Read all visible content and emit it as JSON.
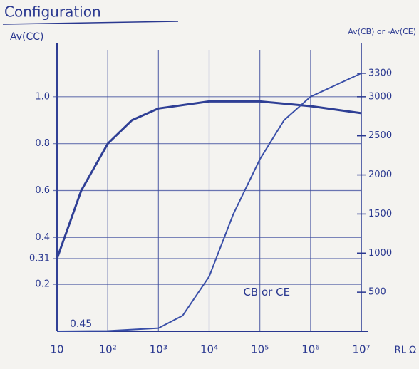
{
  "chart_data": {
    "type": "line",
    "title": "Configuration",
    "y_label": "Av(CC)",
    "y2_label": "Av(CB) or -Av(CE)",
    "x_label": "RL Ω",
    "log_x": true,
    "grid": true,
    "xlim": [
      10,
      10000000
    ],
    "xticks": [
      10,
      {
        "value": 100,
        "label": "10²"
      },
      {
        "value": 1000,
        "label": "10³"
      },
      {
        "value": 10000,
        "label": "10⁴"
      },
      {
        "value": 100000,
        "label": "10⁵"
      },
      {
        "value": 1000000,
        "label": "10⁶"
      },
      {
        "value": 10000000,
        "label": "10⁷"
      }
    ],
    "ylim": [
      0,
      1.2
    ],
    "yticks": [
      0.2,
      0.31,
      0.4,
      0.6,
      0.8,
      {
        "value": 1,
        "label": "1.0"
      }
    ],
    "y2lim": [
      0,
      3600
    ],
    "y2ticks": [
      500,
      1000,
      1500,
      2000,
      2500,
      3000,
      3300
    ],
    "series": [
      {
        "color": "#2f3f95",
        "x": [
          10,
          30,
          100,
          300,
          1000,
          10000,
          100000,
          1000000,
          10000000
        ],
        "values": [
          0.31,
          0.6,
          0.8,
          0.9,
          0.95,
          0.98,
          0.98,
          0.96,
          0.93
        ]
      },
      {
        "name": "CB or CE",
        "color": "#3a4fa8",
        "axis": "y2",
        "x": [
          10,
          100,
          1000,
          3000,
          10000,
          30000,
          100000,
          300000,
          1000000,
          10000000
        ],
        "values": [
          0,
          5,
          40,
          200,
          700,
          1500,
          2200,
          2700,
          3000,
          3300
        ]
      }
    ],
    "annotations": [
      "0.45"
    ]
  }
}
